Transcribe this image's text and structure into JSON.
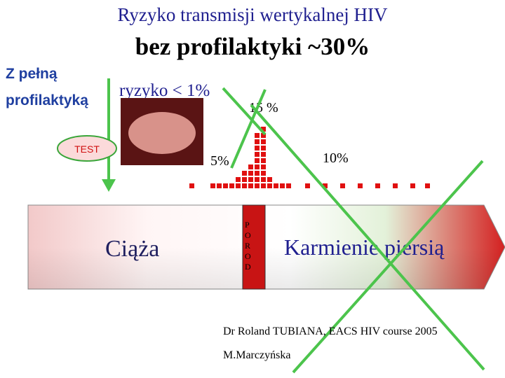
{
  "title": {
    "line1": "Ryzyko transmisji wertykalnej HIV",
    "line2": "bez profilaktyki ~30%"
  },
  "left_label": {
    "lines": [
      "Z pełną",
      "profilaktyką"
    ]
  },
  "risk_label": "ryzyko < 1%",
  "test_label": "TEST",
  "percentages": {
    "peak": "15 %",
    "before": "5%",
    "after": "10%"
  },
  "pregnancy_label": "Ciąża",
  "delivery_letters": [
    "P",
    "O",
    "R",
    "O",
    "D"
  ],
  "breastfeeding_label": "Karmienie piersią",
  "citation": "Dr Roland TUBIANA, EACS HIV course 2005",
  "author": "M.Marczyńska"
}
